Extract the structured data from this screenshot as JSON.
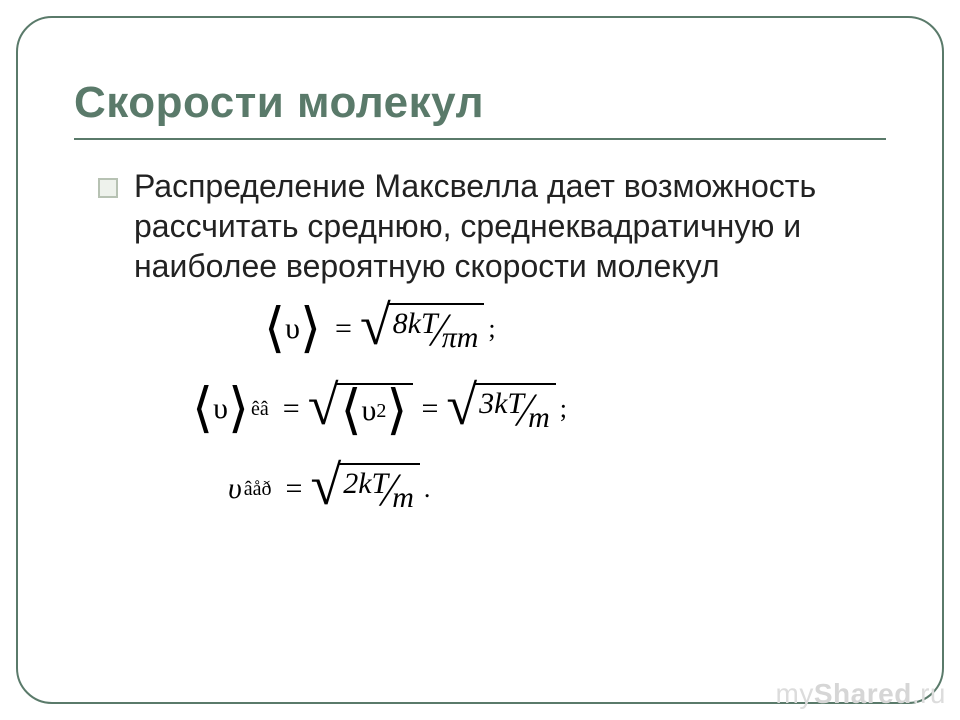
{
  "slide": {
    "title": "Скорости молекул",
    "body": "Распределение Максвелла дает возможность рассчитать среднюю, среднеквадратичную и наиболее вероятную скорости молекул",
    "border_color": "#5a7a6a",
    "title_color": "#5a7a6a",
    "title_fontsize": 44,
    "body_fontsize": 32,
    "body_color": "#222222",
    "bullet_border": "#b7c2b3",
    "bullet_fill": "#eef2ec"
  },
  "formulas": {
    "font_family": "Times New Roman",
    "fontsize": 30,
    "rows": [
      {
        "lhs_symbol": "υ",
        "lhs_sub": "",
        "num": "8kT",
        "den": "πm",
        "terminator": ";"
      },
      {
        "lhs_symbol": "υ",
        "lhs_sub": "êâ",
        "inner_sqrt": true,
        "inner_symbol": "υ",
        "inner_sup": "2",
        "num": "3kT",
        "den": "m",
        "terminator": ";"
      },
      {
        "lhs_plain": "υ",
        "lhs_sub": "âåð",
        "num": "2kT",
        "den": "m",
        "terminator": "."
      }
    ]
  },
  "watermark": {
    "part1": "my",
    "part2": "Shared",
    "suffix": ".ru",
    "color": "#dcdcdc"
  }
}
